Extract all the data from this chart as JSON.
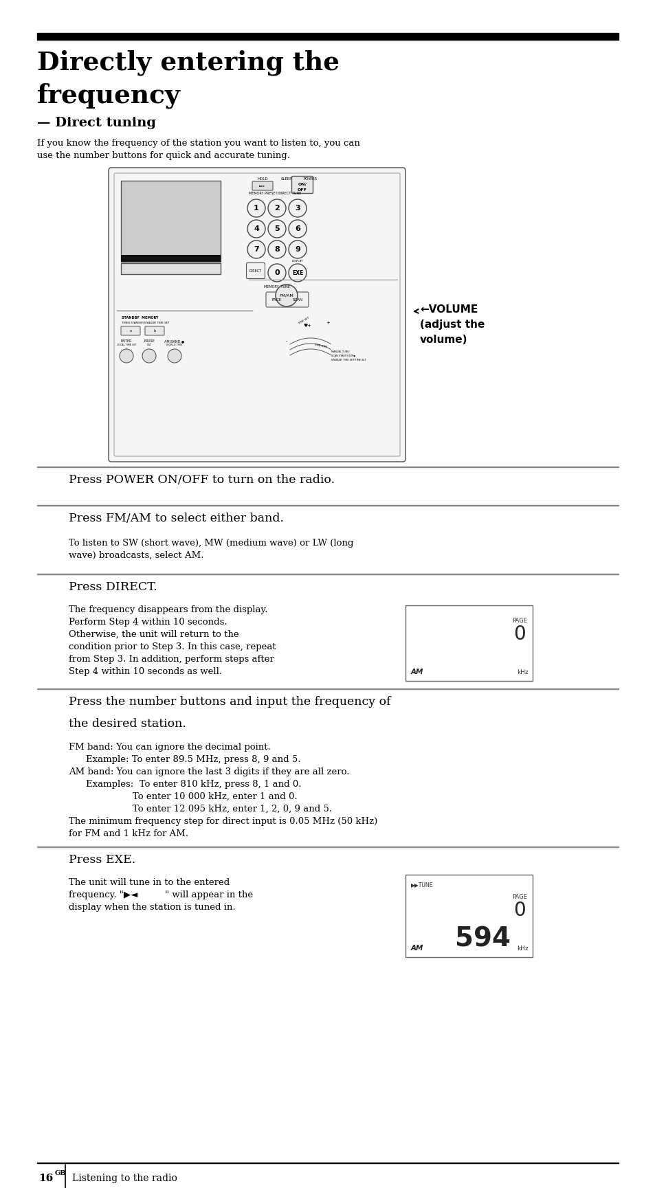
{
  "bg_color": "#ffffff",
  "title_line1": "Directly entering the",
  "title_line2": "frequency",
  "subtitle": "— Direct tuning",
  "intro": "If you know the frequency of the station you want to listen to, you can\nuse the number buttons for quick and accurate tuning.",
  "step1_header": "Press POWER ON/OFF to turn on the radio.",
  "step2_header": "Press FM/AM to select either band.",
  "step2_body": "To listen to SW (short wave), MW (medium wave) or LW (long\nwave) broadcasts, select AM.",
  "step3_header": "Press DIRECT.",
  "step3_body_lines": [
    "The frequency disappears from the display.",
    "Perform Step 4 within 10 seconds.",
    "Otherwise, the unit will return to the",
    "condition prior to Step 3. In this case, repeat",
    "from Step 3. In addition, perform steps after",
    "Step 4 within 10 seconds as well."
  ],
  "step4_header_line1": "Press the number buttons and input the frequency of",
  "step4_header_line2": "the desired station.",
  "step4_body1": "FM band: You can ignore the decimal point.",
  "step4_body2": "    Example: To enter 89.5 MHz, press 8, 9 and 5.",
  "step4_body3": "AM band: You can ignore the last 3 digits if they are all zero.",
  "step4_body4": "    Examples:  To enter 810 kHz, press 8, 1 and 0.",
  "step4_body5": "                    To enter 10 000 kHz, enter 1 and 0.",
  "step4_body6": "                    To enter 12 095 kHz, enter 1, 2, 0, 9 and 5.",
  "step4_body7": "The minimum frequency step for direct input is 0.05 MHz (50 kHz)",
  "step4_body8": "for FM and 1 kHz for AM.",
  "step5_header": "Press EXE.",
  "step5_body1": "The unit will tune in to the entered",
  "step5_body2": "frequency. \"▶◄   \" will appear in the",
  "step5_body3": "display when the station is tuned in.",
  "volume_line1": "←VOLUME",
  "volume_line2": "(adjust the",
  "volume_line3": "volume)",
  "footer_page": "16",
  "footer_super": "GB",
  "footer_text": "Listening to the radio",
  "rule_color": "#888888",
  "text_color": "#000000"
}
